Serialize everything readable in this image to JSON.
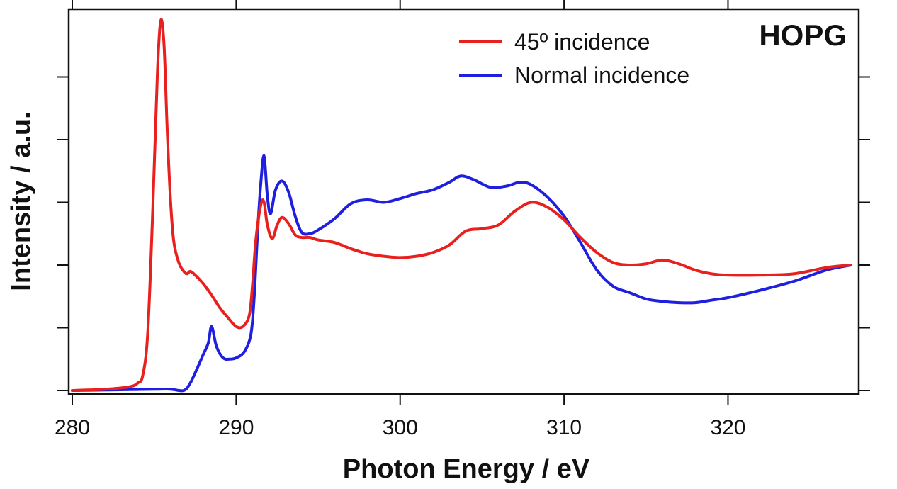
{
  "chart_data": {
    "type": "line",
    "title": "",
    "annotation": "HOPG",
    "xlabel": "Photon Energy / eV",
    "ylabel": "Intensity / a.u.",
    "xlim": [
      280,
      327.5
    ],
    "ylim": [
      0,
      3.0
    ],
    "x_ticks": [
      "280",
      "290",
      "300",
      "310",
      "320"
    ],
    "y_ticks_labeled": false,
    "grid": false,
    "legend_position": "top-right",
    "series": [
      {
        "name": "45º incidence",
        "color": "#e8201e",
        "x": [
          280,
          282,
          283.5,
          284,
          284.3,
          284.6,
          284.9,
          285.2,
          285.4,
          285.6,
          285.8,
          286.0,
          286.2,
          286.5,
          286.8,
          287.0,
          287.2,
          287.5,
          288,
          288.5,
          289,
          289.5,
          290,
          290.4,
          290.8,
          291.0,
          291.2,
          291.5,
          291.7,
          291.9,
          292.2,
          292.5,
          292.8,
          293.2,
          293.6,
          294,
          294.5,
          295,
          296,
          297,
          298,
          299,
          300,
          301,
          302,
          303,
          304,
          305,
          306,
          307,
          308,
          309,
          310,
          311,
          312,
          313,
          314,
          315,
          316,
          317,
          318,
          319,
          320,
          322,
          324,
          326,
          327.5
        ],
        "y": [
          0.0,
          0.01,
          0.03,
          0.06,
          0.12,
          0.45,
          1.4,
          2.55,
          2.95,
          2.75,
          2.05,
          1.5,
          1.18,
          1.02,
          0.95,
          0.93,
          0.95,
          0.92,
          0.85,
          0.76,
          0.66,
          0.58,
          0.51,
          0.51,
          0.6,
          0.85,
          1.2,
          1.48,
          1.5,
          1.32,
          1.21,
          1.32,
          1.38,
          1.33,
          1.24,
          1.22,
          1.22,
          1.2,
          1.18,
          1.13,
          1.09,
          1.07,
          1.06,
          1.07,
          1.1,
          1.16,
          1.27,
          1.29,
          1.32,
          1.43,
          1.5,
          1.46,
          1.36,
          1.22,
          1.1,
          1.02,
          1.0,
          1.01,
          1.04,
          1.01,
          0.96,
          0.93,
          0.92,
          0.92,
          0.93,
          0.98,
          1.0
        ]
      },
      {
        "name": "Normal incidence",
        "color": "#1f1fe0",
        "x": [
          280,
          285,
          286,
          286.8,
          287.2,
          287.6,
          288.0,
          288.3,
          288.5,
          288.8,
          289.2,
          289.6,
          290.0,
          290.5,
          290.9,
          291.1,
          291.3,
          291.5,
          291.7,
          291.9,
          292.1,
          292.4,
          292.8,
          293.2,
          293.6,
          294,
          294.5,
          295,
          296,
          297,
          298,
          299,
          300,
          301,
          302,
          303,
          303.7,
          304.5,
          305.5,
          306.5,
          307.3,
          308,
          309,
          310,
          311,
          312,
          313,
          314,
          315,
          316,
          317,
          318,
          319,
          320,
          322,
          324,
          326,
          327.5
        ],
        "y": [
          0.0,
          0.01,
          0.01,
          0.0,
          0.06,
          0.17,
          0.29,
          0.38,
          0.51,
          0.35,
          0.26,
          0.25,
          0.26,
          0.31,
          0.45,
          0.75,
          1.25,
          1.65,
          1.87,
          1.55,
          1.41,
          1.6,
          1.67,
          1.58,
          1.39,
          1.26,
          1.25,
          1.28,
          1.37,
          1.49,
          1.52,
          1.5,
          1.53,
          1.57,
          1.6,
          1.66,
          1.71,
          1.68,
          1.62,
          1.63,
          1.66,
          1.64,
          1.54,
          1.39,
          1.18,
          0.96,
          0.83,
          0.78,
          0.73,
          0.71,
          0.7,
          0.7,
          0.72,
          0.74,
          0.8,
          0.87,
          0.96,
          1.0
        ]
      }
    ]
  }
}
